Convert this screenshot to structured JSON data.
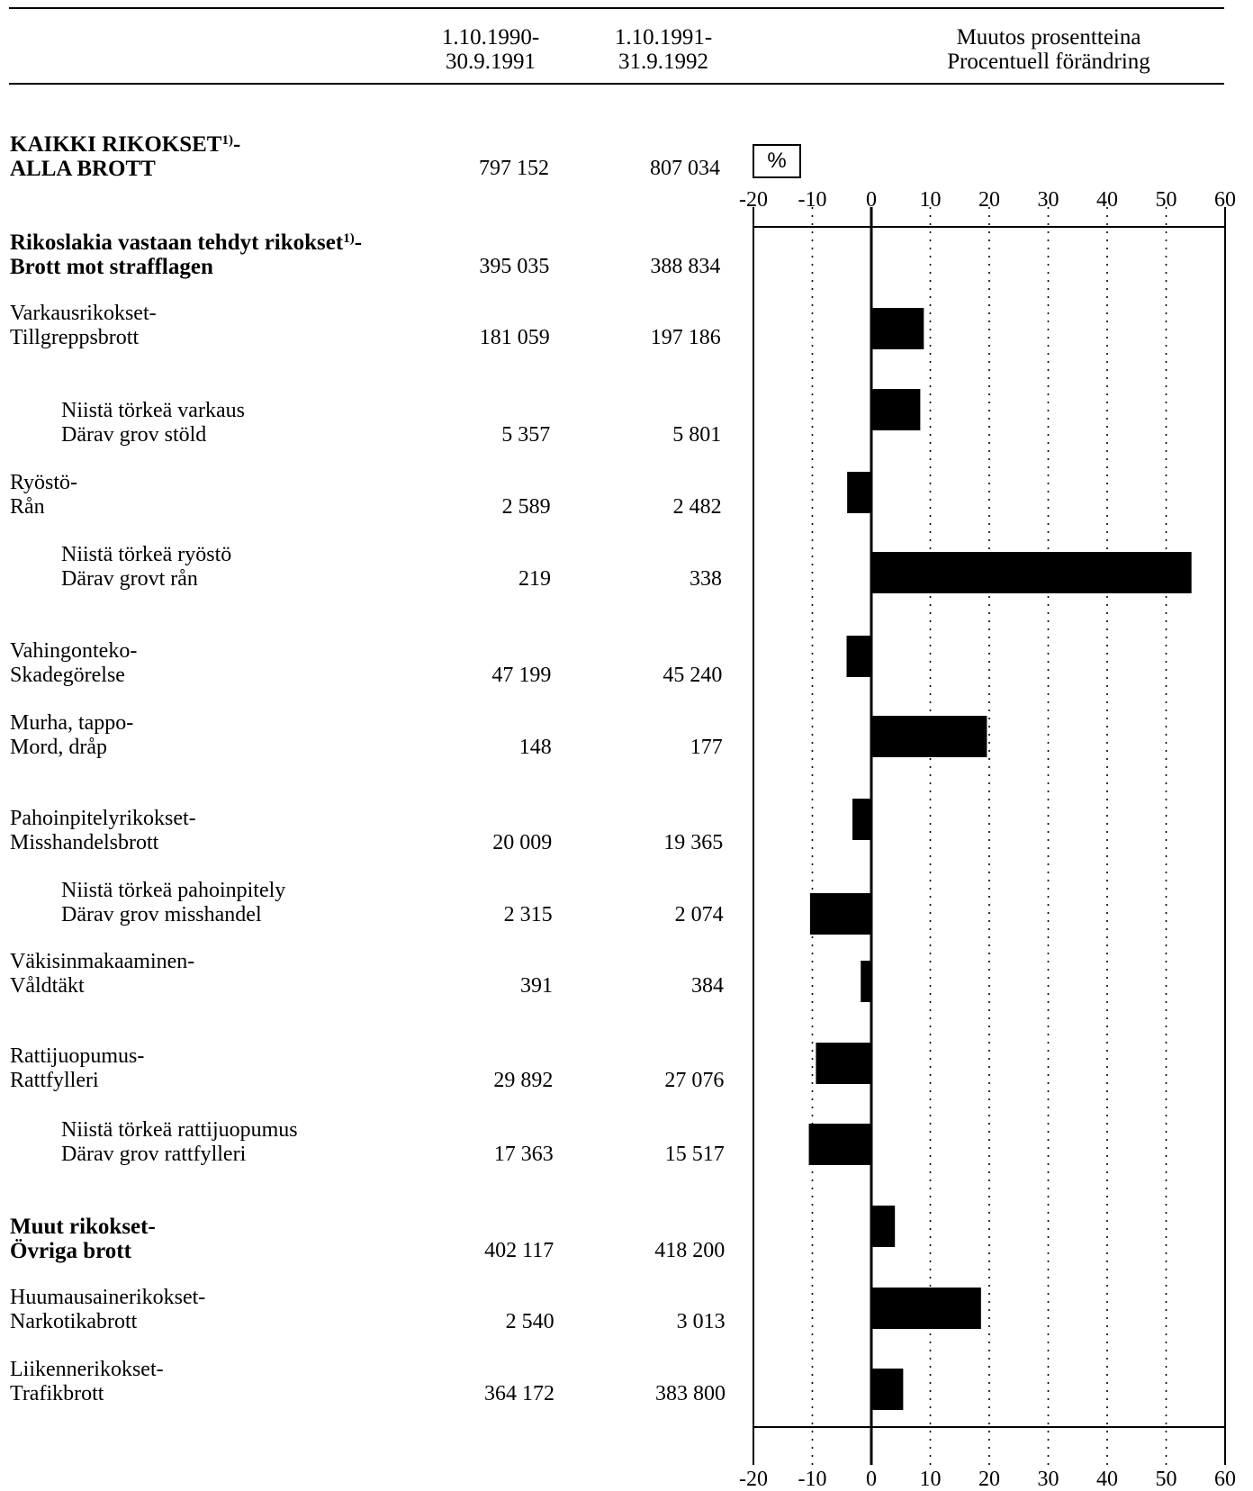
{
  "header": {
    "col1_line1": "1.10.1990-",
    "col1_line2": "30.9.1991",
    "col2_line1": "1.10.1991-",
    "col2_line2": "31.9.1992",
    "change_line1": "Muutos prosentteina",
    "change_line2": "Procentuell förändring"
  },
  "unit_label": "%",
  "rows": [
    {
      "l1": "KAIKKI RIKOKSET",
      "sup": "1)",
      "l1_tail": "-",
      "l2": "ALLA BROTT",
      "v1": "797 152",
      "v2": "807 034"
    },
    {
      "l1": "Rikoslakia vastaan tehdyt rikokset",
      "sup": "1)",
      "l1_tail": "-",
      "l2": "Brott  mot strafflagen",
      "v1": "395 035",
      "v2": "388 834"
    },
    {
      "l1": "Varkausrikokset-",
      "l2": "Tillgreppsbrott",
      "v1": "181 059",
      "v2": "197 186"
    },
    {
      "l1": "Niistä törkeä varkaus",
      "l2": "Därav grov stöld",
      "v1": "5 357",
      "v2": "5 801"
    },
    {
      "l1": "Ryöstö-",
      "l2": "Rån",
      "v1": "2 589",
      "v2": "2 482"
    },
    {
      "l1": "Niistä törkeä ryöstö",
      "l2": "Därav grovt rån",
      "v1": "219",
      "v2": "338"
    },
    {
      "l1": "Vahingonteko-",
      "l2": "Skadegörelse",
      "v1": "47 199",
      "v2": "45 240"
    },
    {
      "l1": "Murha, tappo-",
      "l2": "Mord, dråp",
      "v1": "148",
      "v2": "177"
    },
    {
      "l1": "Pahoinpitelyrikokset-",
      "l2": "Misshandelsbrott",
      "v1": "20 009",
      "v2": "19 365"
    },
    {
      "l1": "Niistä törkeä pahoinpitely",
      "l2": "Därav grov misshandel",
      "v1": "2 315",
      "v2": "2 074"
    },
    {
      "l1": "Väkisinmakaaminen-",
      "l2": "Våldtäkt",
      "v1": "391",
      "v2": "384"
    },
    {
      "l1": "Rattijuopumus-",
      "l2": "Rattfylleri",
      "v1": "29 892",
      "v2": "27 076"
    },
    {
      "l1": "Niistä törkeä rattijuopumus",
      "l2": "Därav grov rattfylleri",
      "v1": "17 363",
      "v2": "15 517"
    },
    {
      "l1": "Muut rikokset-",
      "l2": "Övriga brott",
      "v1": "402 117",
      "v2": "418 200"
    },
    {
      "l1": "Huumausainerikokset-",
      "l2": "Narkotikabrott",
      "v1": "2 540",
      "v2": "3 013"
    },
    {
      "l1": "Liikennerikokset-",
      "l2": "Trafikbrott",
      "v1": "364 172",
      "v2": "383 800"
    }
  ],
  "chart_data": {
    "type": "bar",
    "orientation": "horizontal",
    "categories": [
      "Varkausrikokset-Tillgreppsbrott",
      "Niistä törkeä varkaus Därav grov stöld",
      "Ryöstö-Rån",
      "Niistä törkeä ryöstö Därav grovt rån",
      "Vahingonteko-Skadegörelse",
      "Murha, tappo-Mord, dråp",
      "Pahoinpitelyrikokset-Misshandelsbrott",
      "Niistä törkeä pahoinpitely Därav grov misshandel",
      "Väkisinmakaaminen-Våldtäkt",
      "Rattijuopumus-Rattfylleri",
      "Niistä törkeä rattijuopumus Därav grov rattfylleri",
      "Muut rikokset-Övriga brott",
      "Huumausainerikokset-Narkotikabrott",
      "Liikennerikokset-Trafikbrott"
    ],
    "values": [
      8.9,
      8.3,
      -4.1,
      54.3,
      -4.2,
      19.6,
      -3.2,
      -10.4,
      -1.8,
      -9.4,
      -10.6,
      4.0,
      18.6,
      5.4
    ],
    "xlim": [
      -20,
      60
    ],
    "ticks": [
      -20,
      -10,
      0,
      10,
      20,
      30,
      40,
      50,
      60
    ],
    "grid": true,
    "bar_color": "#000000"
  }
}
